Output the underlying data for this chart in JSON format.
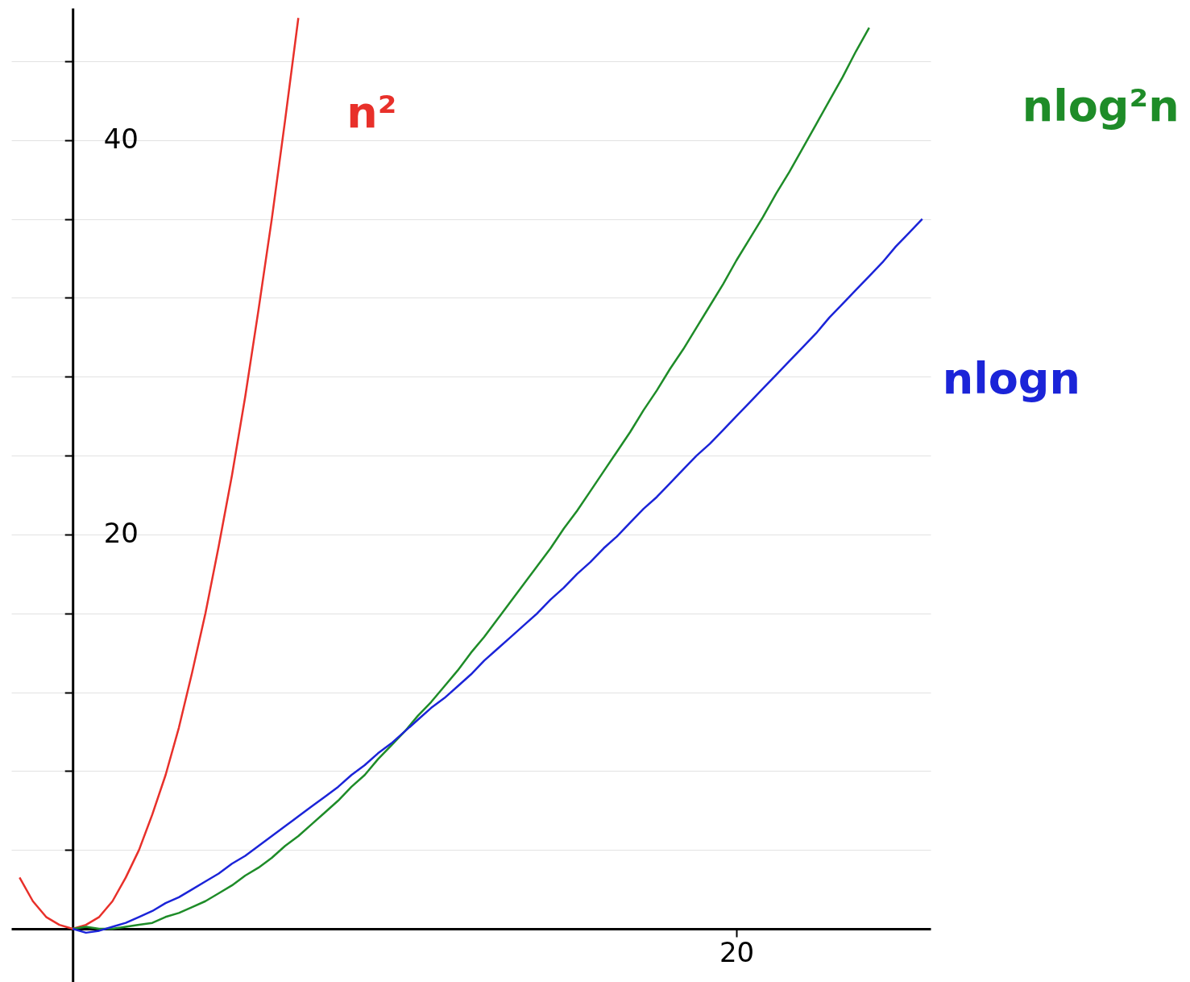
{
  "chart_data": {
    "type": "line",
    "ylim": [
      -2.7,
      46.7
    ],
    "categories": [
      null,
      null,
      null,
      null,
      null,
      null,
      null,
      null,
      null,
      null,
      null,
      null,
      null,
      null,
      null,
      null,
      null,
      null,
      null,
      null,
      null,
      null,
      null,
      null,
      null,
      null,
      null,
      null,
      null,
      null,
      null,
      null,
      null,
      null,
      null,
      null,
      null,
      null,
      null,
      null,
      null,
      null,
      null,
      null,
      null,
      null,
      null,
      null,
      null,
      null,
      null,
      null,
      null,
      null,
      "20",
      null,
      null,
      null,
      null,
      null,
      null,
      null,
      null,
      null,
      null,
      null,
      null,
      null,
      null
    ],
    "yticks": [
      {
        "value": 4,
        "label": null
      },
      {
        "value": 8,
        "label": null
      },
      {
        "value": 12,
        "label": null
      },
      {
        "value": 16,
        "label": null
      },
      20,
      {
        "value": 24,
        "label": null
      },
      {
        "value": 28,
        "label": null
      },
      {
        "value": 32,
        "label": null
      },
      {
        "value": 36,
        "label": null
      },
      40,
      {
        "value": 44,
        "label": null
      }
    ],
    "grid": "y",
    "series": [
      {
        "name": "n²",
        "color": "#e8302a",
        "values": [
          2.6,
          1.4,
          0.6,
          0.2,
          0,
          0.2,
          0.6,
          1.4,
          2.6,
          4,
          5.8,
          7.8,
          10.2,
          13,
          16,
          19.4,
          23,
          27,
          31.4,
          36,
          41,
          46.2,
          null,
          null,
          null,
          null,
          null,
          null,
          null,
          null,
          null,
          null,
          null,
          null,
          null,
          null,
          null,
          null,
          null,
          null,
          null,
          null,
          null,
          null,
          null,
          null,
          null,
          null,
          null,
          null,
          null,
          null,
          null,
          null,
          null,
          null,
          null,
          null,
          null,
          null,
          null,
          null,
          null,
          null,
          null,
          null,
          null,
          null,
          null
        ]
      },
      {
        "name": "nlog²n",
        "color": "#1e8c28",
        "values": [
          null,
          null,
          null,
          null,
          0,
          0.1,
          0,
          0,
          0.1,
          0.2,
          0.3,
          0.6,
          0.8,
          1.1,
          1.4,
          1.8,
          2.2,
          2.7,
          3.1,
          3.6,
          4.2,
          4.7,
          5.3,
          5.9,
          6.5,
          7.2,
          7.8,
          8.6,
          9.3,
          10,
          10.8,
          11.5,
          12.3,
          13.1,
          14,
          14.8,
          15.7,
          16.6,
          17.5,
          18.4,
          19.3,
          20.3,
          21.2,
          22.2,
          23.2,
          24.2,
          25.2,
          26.3,
          27.3,
          28.4,
          29.4,
          30.5,
          31.6,
          32.7,
          33.9,
          35,
          36.1,
          37.3,
          38.4,
          39.6,
          40.8,
          42,
          43.2,
          44.5,
          45.7,
          null,
          null,
          null,
          null
        ]
      },
      {
        "name": "nlogn",
        "color": "#1b24d8",
        "values": [
          null,
          null,
          null,
          null,
          0,
          -0.2,
          -0.1,
          0.1,
          0.3,
          0.6,
          0.9,
          1.3,
          1.6,
          2,
          2.4,
          2.8,
          3.3,
          3.7,
          4.2,
          4.7,
          5.2,
          5.7,
          6.2,
          6.7,
          7.2,
          7.8,
          8.3,
          8.9,
          9.4,
          10,
          10.6,
          11.2,
          11.7,
          12.3,
          12.9,
          13.6,
          14.2,
          14.8,
          15.4,
          16,
          16.7,
          17.3,
          18,
          18.6,
          19.3,
          19.9,
          20.6,
          21.3,
          21.9,
          22.6,
          23.3,
          24,
          24.6,
          25.3,
          26,
          26.7,
          27.4,
          28.1,
          28.8,
          29.5,
          30.2,
          31,
          31.7,
          32.4,
          33.1,
          33.8,
          34.6,
          35.3,
          36
        ]
      }
    ]
  }
}
